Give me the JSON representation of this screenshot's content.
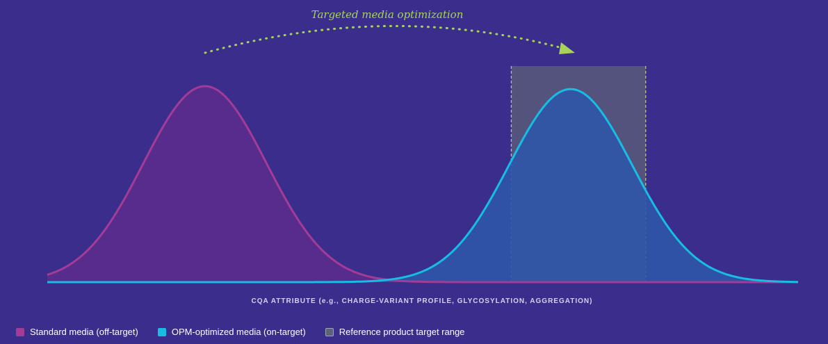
{
  "chart_data": {
    "type": "area",
    "annotation": "Targeted media optimization",
    "xlabel": "CQA ATTRIBUTE (e.g., CHARGE-VARIANT PROFILE, GLYCOSYLATION, AGGREGATION)",
    "ylabel": "",
    "xlim": [
      0,
      100
    ],
    "ylim": [
      0,
      1.1
    ],
    "grid": false,
    "legend_position": "bottom-left",
    "series": [
      {
        "name": "Standard media (off-target)",
        "color": "#a23c96",
        "fill": "#5e2d8d",
        "mean": 21,
        "sd": 8.2,
        "peak": 1.0
      },
      {
        "name": "OPM-optimized media (on-target)",
        "color": "#17bde3",
        "fill": "#2f55a8",
        "mean": 69.7,
        "sd": 8.2,
        "peak": 0.985
      }
    ],
    "target_range": {
      "name": "Reference product target range",
      "from": 61.8,
      "to": 79.7,
      "color": "#5e6278"
    }
  },
  "colors": {
    "background": "#3a2d8c",
    "annotation": "#a8d35a",
    "axis_label": "#d6d2ef"
  }
}
